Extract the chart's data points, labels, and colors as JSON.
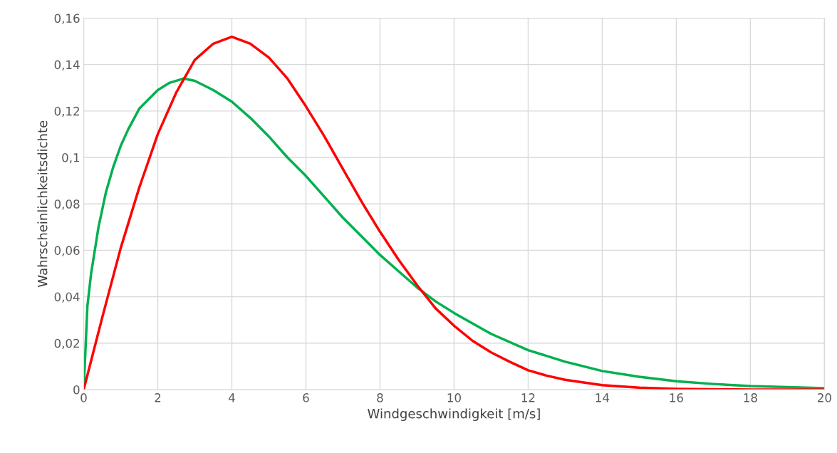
{
  "chart_data": {
    "type": "line",
    "xlabel": "Windgeschwindigkeit [m/s]",
    "ylabel": "Wahrscheinlichkeitsdichte",
    "xlim": [
      0,
      20
    ],
    "xticks": [
      0,
      2,
      4,
      6,
      8,
      10,
      12,
      14,
      16,
      18,
      20
    ],
    "ylim": [
      0,
      0.16
    ],
    "yticks": [
      0,
      {
        "value": 0.02,
        "label": "0,02"
      },
      {
        "value": 0.04,
        "label": "0,04"
      },
      {
        "value": 0.06,
        "label": "0,06"
      },
      {
        "value": 0.08,
        "label": "0,08"
      },
      {
        "value": 0.1,
        "label": "0,1"
      },
      {
        "value": 0.12,
        "label": "0,12"
      },
      {
        "value": 0.14,
        "label": "0,14"
      },
      {
        "value": 0.16,
        "label": "0,16"
      }
    ],
    "grid": true,
    "marker": "none",
    "line_style": "solid",
    "series": [
      {
        "color": "#00b050",
        "x": [
          0,
          0.1,
          0.2,
          0.4,
          0.6,
          0.8,
          1,
          1.2,
          1.5,
          2,
          2.3,
          2.7,
          3,
          3.5,
          4,
          4.5,
          5,
          5.5,
          6,
          6.5,
          7,
          7.5,
          8,
          8.5,
          9,
          9.5,
          10,
          11,
          12,
          13,
          14,
          15,
          16,
          17,
          18,
          20
        ],
        "values": [
          0,
          0.036,
          0.05,
          0.07,
          0.085,
          0.096,
          0.105,
          0.112,
          0.121,
          0.129,
          0.132,
          0.134,
          0.133,
          0.129,
          0.124,
          0.117,
          0.109,
          0.1,
          0.092,
          0.083,
          0.074,
          0.066,
          0.058,
          0.051,
          0.044,
          0.038,
          0.033,
          0.024,
          0.017,
          0.012,
          0.008,
          0.0055,
          0.0036,
          0.0024,
          0.0015,
          0.0006
        ]
      },
      {
        "color": "#ff0000",
        "x": [
          0,
          0.5,
          1,
          1.5,
          2,
          2.5,
          3,
          3.5,
          4,
          4.5,
          5,
          5.5,
          6,
          6.5,
          7,
          7.5,
          8,
          8.5,
          9,
          9.5,
          10,
          10.5,
          11,
          11.5,
          12,
          12.5,
          13,
          14,
          15,
          16,
          18,
          20
        ],
        "values": [
          0,
          0.031,
          0.061,
          0.087,
          0.11,
          0.128,
          0.142,
          0.149,
          0.152,
          0.149,
          0.143,
          0.134,
          0.122,
          0.109,
          0.095,
          0.081,
          0.068,
          0.056,
          0.045,
          0.035,
          0.0275,
          0.021,
          0.016,
          0.012,
          0.0083,
          0.006,
          0.0042,
          0.0019,
          0.0008,
          0.0003,
          0.0,
          0.0
        ]
      }
    ]
  }
}
